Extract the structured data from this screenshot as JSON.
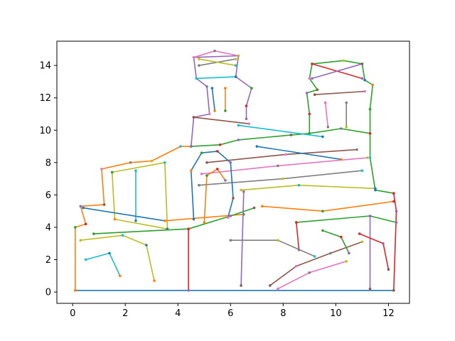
{
  "chart_data": {
    "type": "line",
    "title": "",
    "xlabel": "",
    "ylabel": "",
    "xlim": [
      -0.6,
      12.8
    ],
    "ylim": [
      -0.7,
      15.5
    ],
    "xticks": [
      0,
      2,
      4,
      6,
      8,
      10,
      12
    ],
    "yticks": [
      0,
      2,
      4,
      6,
      8,
      10,
      12,
      14
    ],
    "x_tick_labels": [
      "0",
      "2",
      "4",
      "6",
      "8",
      "10",
      "12"
    ],
    "y_tick_labels": [
      "0",
      "2",
      "4",
      "6",
      "8",
      "10",
      "12",
      "14"
    ],
    "grid": false,
    "legend": "none",
    "colors": [
      "#1f77b4",
      "#ff7f0e",
      "#2ca02c",
      "#d62728",
      "#9467bd",
      "#8c564b",
      "#e377c2",
      "#7f7f7f",
      "#bcbd22",
      "#17becf"
    ],
    "series": [
      {
        "points": [
          [
            0.1,
            0.1
          ],
          [
            12.2,
            0.1
          ]
        ]
      },
      {
        "points": [
          [
            0.1,
            0.1
          ],
          [
            0.1,
            4.0
          ],
          [
            0.5,
            4.2
          ],
          [
            0.3,
            5.3
          ],
          [
            1.2,
            5.4
          ],
          [
            1.1,
            7.6
          ],
          [
            2.2,
            8.0
          ],
          [
            3.0,
            8.1
          ],
          [
            4.1,
            9.0
          ],
          [
            4.5,
            9.0
          ]
        ]
      },
      {
        "points": [
          [
            4.5,
            9.0
          ],
          [
            5.6,
            9.1
          ],
          [
            6.3,
            9.4
          ],
          [
            8.3,
            9.7
          ],
          [
            9.0,
            9.8
          ],
          [
            10.2,
            10.1
          ],
          [
            11.3,
            9.8
          ],
          [
            11.3,
            8.3
          ],
          [
            11.5,
            6.3
          ],
          [
            12.2,
            6.1
          ]
        ]
      },
      {
        "points": [
          [
            12.2,
            6.1
          ],
          [
            12.3,
            5.0
          ],
          [
            12.2,
            0.1
          ]
        ]
      },
      {
        "points": [
          [
            4.5,
            9.0
          ],
          [
            4.6,
            10.8
          ],
          [
            5.2,
            11.0
          ],
          [
            5.1,
            12.7
          ],
          [
            4.7,
            13.2
          ],
          [
            4.6,
            14.5
          ],
          [
            6.3,
            14.6
          ],
          [
            6.2,
            13.3
          ],
          [
            6.8,
            12.6
          ],
          [
            6.6,
            11.5
          ],
          [
            6.6,
            10.7
          ]
        ]
      },
      {
        "points": [
          [
            4.6,
            10.8
          ],
          [
            6.7,
            10.4
          ]
        ]
      },
      {
        "points": [
          [
            4.6,
            14.5
          ],
          [
            5.4,
            14.9
          ],
          [
            6.3,
            14.6
          ]
        ]
      },
      {
        "points": [
          [
            4.8,
            14.0
          ],
          [
            6.2,
            14.4
          ]
        ]
      },
      {
        "points": [
          [
            4.8,
            14.4
          ],
          [
            6.2,
            14.0
          ]
        ]
      },
      {
        "points": [
          [
            4.7,
            13.2
          ],
          [
            6.2,
            13.3
          ]
        ]
      },
      {
        "points": [
          [
            5.3,
            12.6
          ],
          [
            5.4,
            11.2
          ]
        ]
      },
      {
        "points": [
          [
            5.8,
            12.6
          ],
          [
            5.8,
            11.2
          ]
        ]
      },
      {
        "points": [
          [
            9.0,
            9.8
          ],
          [
            9.0,
            11.0
          ],
          [
            8.9,
            12.3
          ],
          [
            9.3,
            12.5
          ],
          [
            9.0,
            13.2
          ],
          [
            9.1,
            14.1
          ],
          [
            10.3,
            14.3
          ],
          [
            11.0,
            14.1
          ],
          [
            11.1,
            13.1
          ],
          [
            11.4,
            12.8
          ],
          [
            11.3,
            11.3
          ],
          [
            11.3,
            9.8
          ]
        ]
      },
      {
        "points": [
          [
            9.1,
            14.1
          ],
          [
            11.0,
            13.2
          ]
        ]
      },
      {
        "points": [
          [
            9.1,
            13.2
          ],
          [
            11.0,
            14.1
          ]
        ]
      },
      {
        "points": [
          [
            9.2,
            12.2
          ],
          [
            11.1,
            12.4
          ]
        ]
      },
      {
        "points": [
          [
            9.6,
            11.7
          ],
          [
            9.7,
            10.2
          ]
        ]
      },
      {
        "points": [
          [
            10.4,
            11.7
          ],
          [
            10.4,
            10.2
          ]
        ]
      },
      {
        "points": [
          [
            1.5,
            7.4
          ],
          [
            3.5,
            8.0
          ],
          [
            3.6,
            3.9
          ],
          [
            1.6,
            4.5
          ],
          [
            1.5,
            7.4
          ]
        ]
      },
      {
        "points": [
          [
            2.4,
            7.5
          ],
          [
            2.4,
            4.4
          ]
        ]
      },
      {
        "points": [
          [
            0.4,
            5.2
          ],
          [
            3.5,
            4.4
          ]
        ]
      },
      {
        "points": [
          [
            3.5,
            4.4
          ],
          [
            6.5,
            4.8
          ]
        ]
      },
      {
        "points": [
          [
            0.8,
            3.6
          ],
          [
            4.4,
            3.9
          ],
          [
            6.0,
            4.7
          ],
          [
            6.9,
            5.2
          ]
        ]
      },
      {
        "points": [
          [
            4.4,
            3.9
          ],
          [
            4.4,
            0.1
          ]
        ]
      },
      {
        "points": [
          [
            6.5,
            6.2
          ],
          [
            6.4,
            0.4
          ]
        ]
      },
      {
        "points": [
          [
            5.1,
            8.0
          ],
          [
            8.1,
            8.5
          ],
          [
            10.8,
            8.8
          ]
        ]
      },
      {
        "points": [
          [
            4.9,
            7.3
          ],
          [
            7.8,
            7.8
          ],
          [
            11.2,
            8.3
          ]
        ]
      },
      {
        "points": [
          [
            4.8,
            6.6
          ],
          [
            8.0,
            7.0
          ],
          [
            11.0,
            7.5
          ]
        ]
      },
      {
        "points": [
          [
            6.4,
            6.3
          ],
          [
            8.6,
            6.6
          ],
          [
            11.5,
            6.4
          ]
        ]
      },
      {
        "points": [
          [
            6.3,
            10.3
          ],
          [
            9.5,
            9.6
          ]
        ]
      },
      {
        "points": [
          [
            7.0,
            9.0
          ],
          [
            10.2,
            8.2
          ]
        ]
      },
      {
        "points": [
          [
            7.2,
            5.3
          ],
          [
            9.5,
            5.0
          ],
          [
            12.2,
            5.6
          ]
        ]
      },
      {
        "points": [
          [
            8.5,
            4.3
          ],
          [
            11.3,
            4.7
          ],
          [
            12.3,
            4.3
          ]
        ]
      },
      {
        "points": [
          [
            8.5,
            4.3
          ],
          [
            8.6,
            2.6
          ]
        ]
      },
      {
        "points": [
          [
            11.3,
            4.7
          ],
          [
            11.3,
            0.2
          ]
        ]
      },
      {
        "points": [
          [
            7.5,
            0.4
          ],
          [
            8.5,
            1.6
          ],
          [
            9.8,
            2.4
          ],
          [
            11.0,
            3.1
          ]
        ]
      },
      {
        "points": [
          [
            7.8,
            0.2
          ],
          [
            9.0,
            1.2
          ],
          [
            10.4,
            1.9
          ]
        ]
      },
      {
        "points": [
          [
            6.0,
            3.2
          ],
          [
            7.8,
            3.2
          ],
          [
            9.2,
            2.2
          ]
        ]
      },
      {
        "points": [
          [
            0.3,
            3.2
          ],
          [
            1.9,
            3.5
          ],
          [
            2.8,
            2.9
          ],
          [
            3.1,
            0.7
          ]
        ]
      },
      {
        "points": [
          [
            0.5,
            2.0
          ],
          [
            1.4,
            2.4
          ],
          [
            1.8,
            1.0
          ]
        ]
      },
      {
        "points": [
          [
            4.6,
            4.5
          ],
          [
            4.5,
            7.5
          ],
          [
            4.9,
            8.6
          ],
          [
            5.5,
            8.7
          ],
          [
            6.0,
            8.0
          ],
          [
            6.1,
            5.8
          ],
          [
            5.9,
            4.6
          ]
        ]
      },
      {
        "points": [
          [
            5.0,
            4.3
          ],
          [
            5.1,
            7.2
          ],
          [
            5.5,
            7.6
          ],
          [
            5.8,
            6.9
          ]
        ]
      },
      {
        "points": [
          [
            9.5,
            3.8
          ],
          [
            10.2,
            3.4
          ],
          [
            10.5,
            2.4
          ]
        ]
      },
      {
        "points": [
          [
            10.9,
            3.6
          ],
          [
            11.8,
            3.0
          ],
          [
            12.0,
            1.4
          ]
        ]
      }
    ]
  }
}
